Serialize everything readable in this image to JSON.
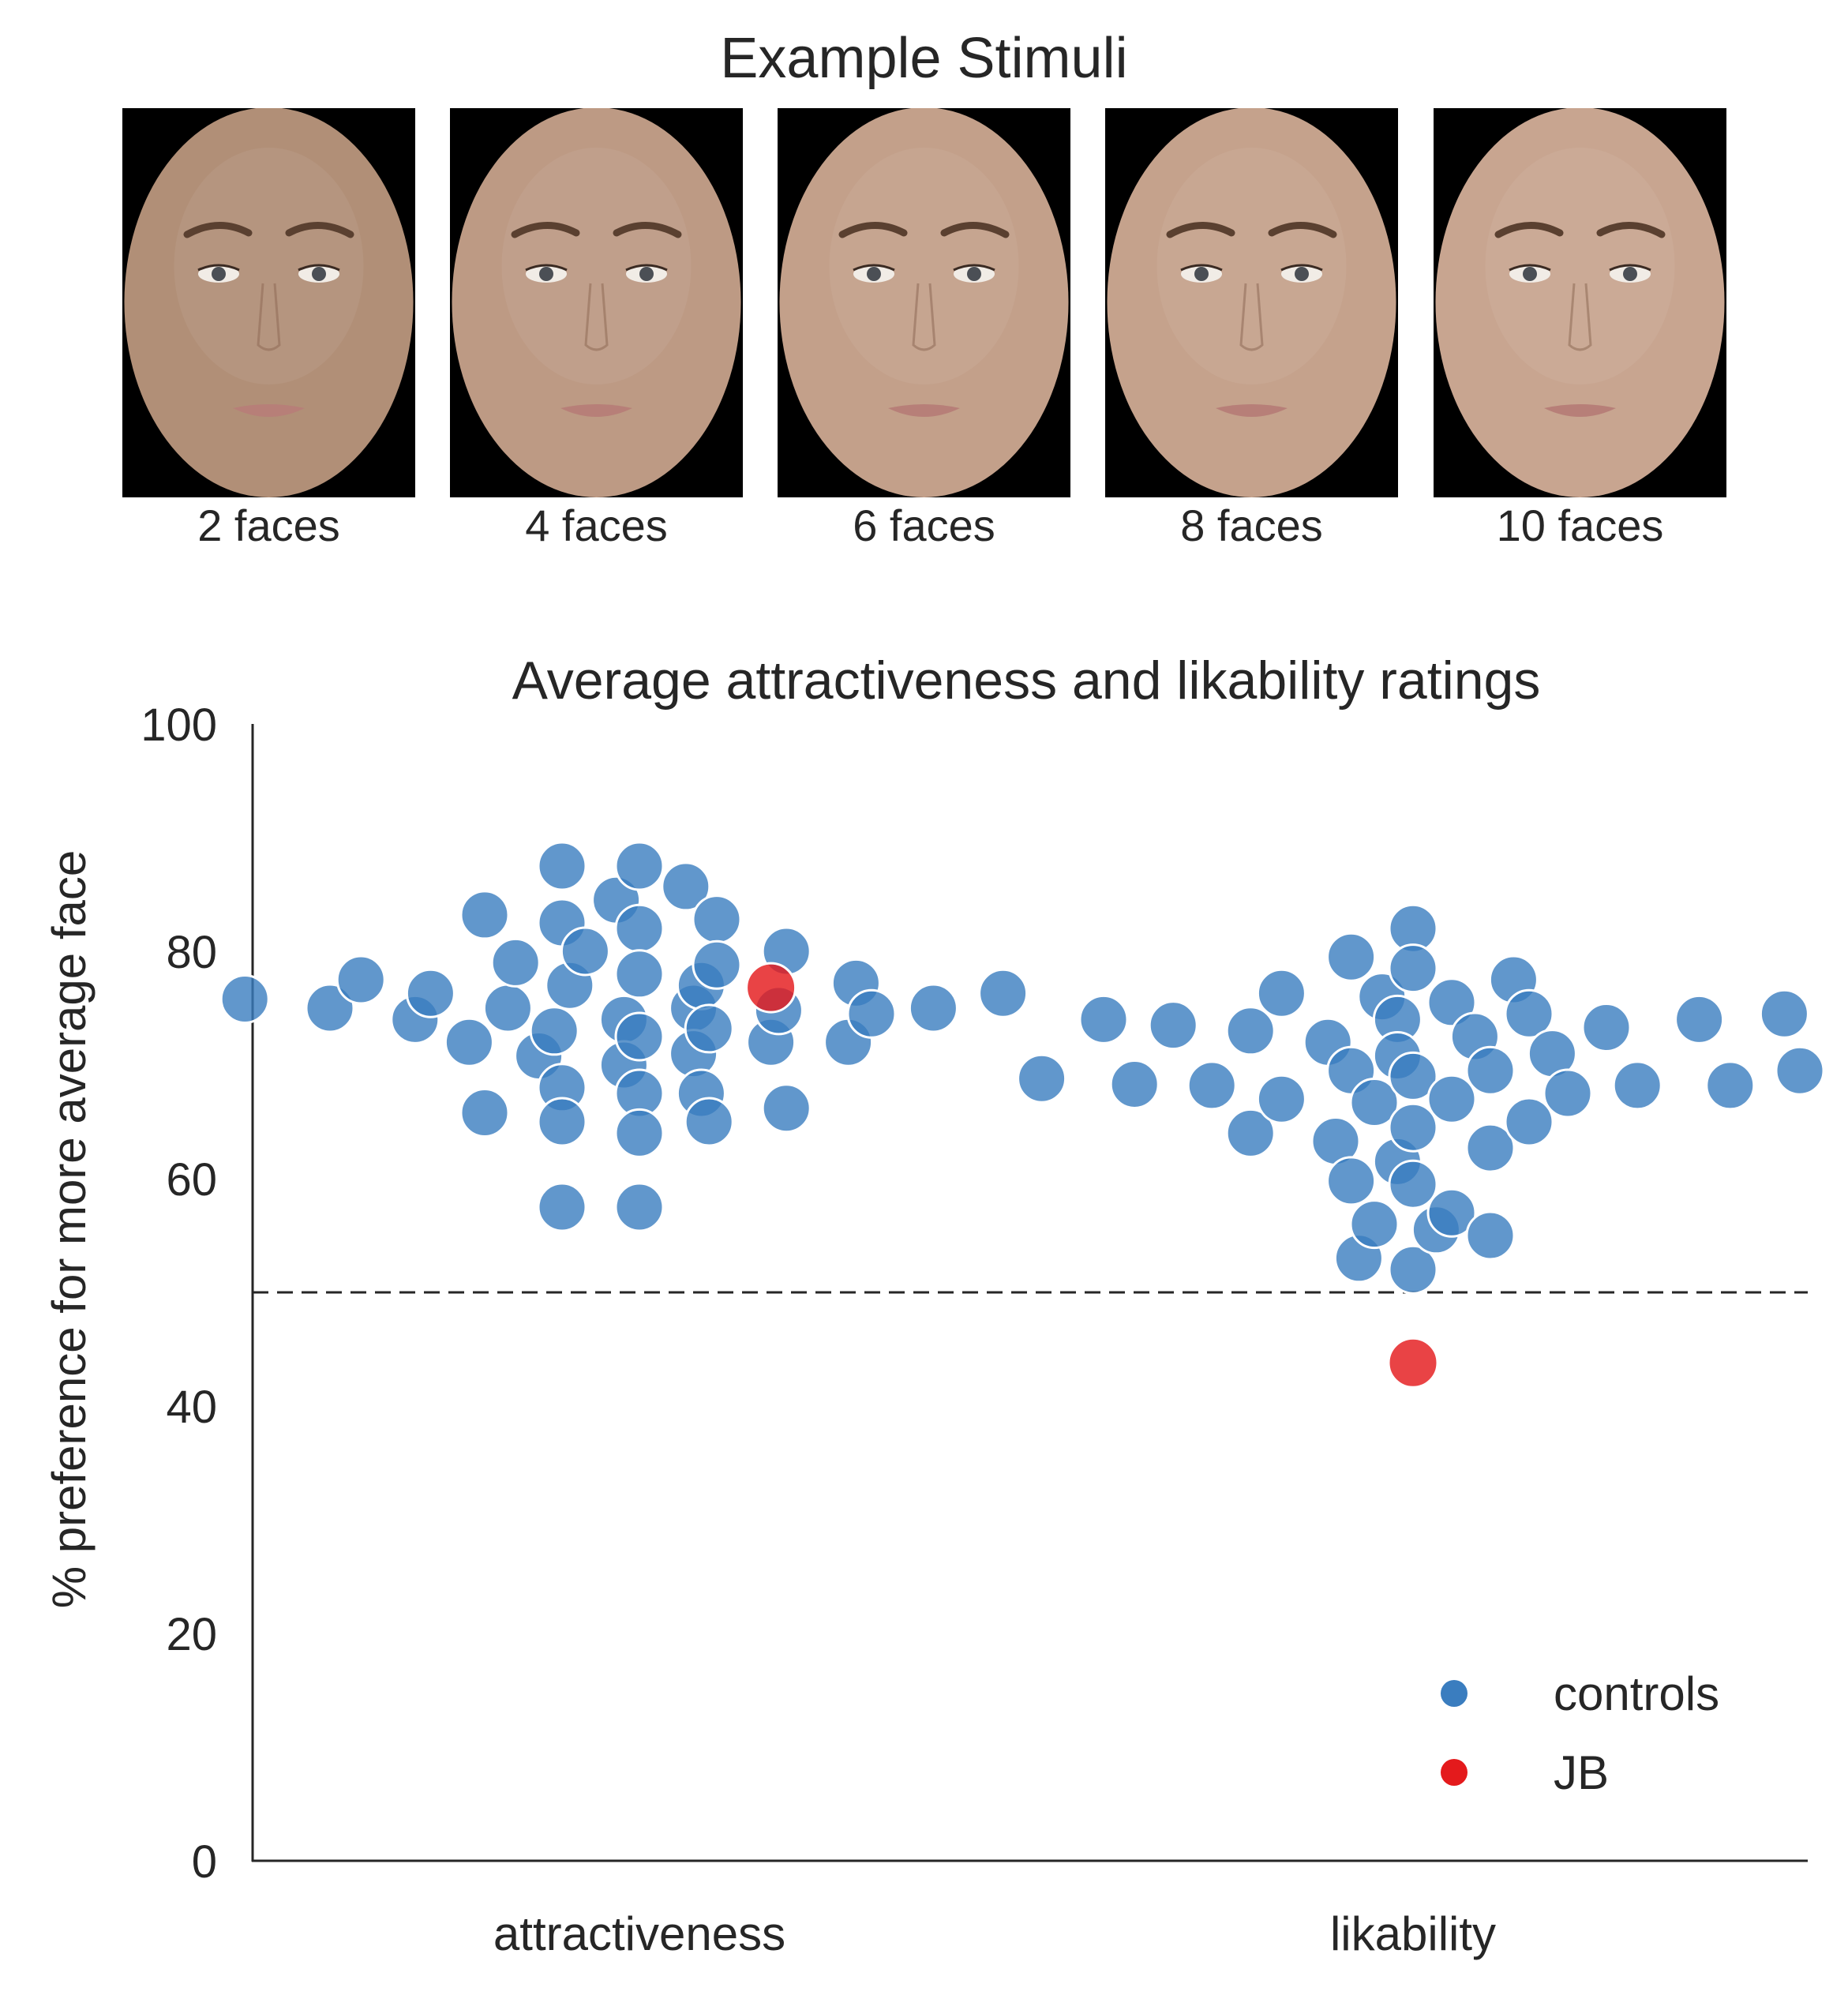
{
  "stimuli": {
    "title": "Example Stimuli",
    "faces": [
      {
        "caption": "2 faces",
        "skin": "#b18f77"
      },
      {
        "caption": "4 faces",
        "skin": "#bd9a84"
      },
      {
        "caption": "6 faces",
        "skin": "#c3a08a"
      },
      {
        "caption": "8 faces",
        "skin": "#c5a28c"
      },
      {
        "caption": "10 faces",
        "skin": "#c8a590"
      }
    ]
  },
  "chart_data": {
    "type": "scatter",
    "title": "Average attractiveness and likability ratings",
    "ylabel": "% preference for more average face",
    "xlabel": "",
    "categories": [
      "attractiveness",
      "likability"
    ],
    "ylim": [
      0,
      100
    ],
    "yticks": [
      0,
      20,
      40,
      60,
      80,
      100
    ],
    "reference_line": 50,
    "legend": {
      "placement": "lower-right"
    },
    "grid": false,
    "series": [
      {
        "name": "controls",
        "color": "#3a7dbf",
        "points": [
          {
            "category": "attractiveness",
            "dx": -0.51,
            "y": 75.8
          },
          {
            "category": "attractiveness",
            "dx": -0.4,
            "y": 75.0
          },
          {
            "category": "attractiveness",
            "dx": -0.36,
            "y": 77.5
          },
          {
            "category": "attractiveness",
            "dx": -0.29,
            "y": 74.0
          },
          {
            "category": "attractiveness",
            "dx": -0.27,
            "y": 76.3
          },
          {
            "category": "attractiveness",
            "dx": -0.22,
            "y": 72.0
          },
          {
            "category": "attractiveness",
            "dx": -0.2,
            "y": 83.2
          },
          {
            "category": "attractiveness",
            "dx": -0.2,
            "y": 65.8
          },
          {
            "category": "attractiveness",
            "dx": -0.17,
            "y": 75.0
          },
          {
            "category": "attractiveness",
            "dx": -0.16,
            "y": 79.0
          },
          {
            "category": "attractiveness",
            "dx": -0.13,
            "y": 70.8
          },
          {
            "category": "attractiveness",
            "dx": -0.11,
            "y": 73.0
          },
          {
            "category": "attractiveness",
            "dx": -0.1,
            "y": 87.5
          },
          {
            "category": "attractiveness",
            "dx": -0.1,
            "y": 82.5
          },
          {
            "category": "attractiveness",
            "dx": -0.1,
            "y": 68.0
          },
          {
            "category": "attractiveness",
            "dx": -0.1,
            "y": 65.0
          },
          {
            "category": "attractiveness",
            "dx": -0.1,
            "y": 57.5
          },
          {
            "category": "attractiveness",
            "dx": -0.09,
            "y": 77.0
          },
          {
            "category": "attractiveness",
            "dx": -0.07,
            "y": 80.0
          },
          {
            "category": "attractiveness",
            "dx": -0.03,
            "y": 84.5
          },
          {
            "category": "attractiveness",
            "dx": -0.02,
            "y": 74.0
          },
          {
            "category": "attractiveness",
            "dx": -0.02,
            "y": 70.0
          },
          {
            "category": "attractiveness",
            "dx": 0.0,
            "y": 87.5
          },
          {
            "category": "attractiveness",
            "dx": 0.0,
            "y": 82.0
          },
          {
            "category": "attractiveness",
            "dx": 0.0,
            "y": 78.0
          },
          {
            "category": "attractiveness",
            "dx": 0.0,
            "y": 72.5
          },
          {
            "category": "attractiveness",
            "dx": 0.0,
            "y": 67.5
          },
          {
            "category": "attractiveness",
            "dx": 0.0,
            "y": 64.0
          },
          {
            "category": "attractiveness",
            "dx": 0.0,
            "y": 57.5
          },
          {
            "category": "attractiveness",
            "dx": 0.06,
            "y": 85.7
          },
          {
            "category": "attractiveness",
            "dx": 0.07,
            "y": 75.0
          },
          {
            "category": "attractiveness",
            "dx": 0.07,
            "y": 71.0
          },
          {
            "category": "attractiveness",
            "dx": 0.08,
            "y": 77.0
          },
          {
            "category": "attractiveness",
            "dx": 0.08,
            "y": 67.5
          },
          {
            "category": "attractiveness",
            "dx": 0.09,
            "y": 73.2
          },
          {
            "category": "attractiveness",
            "dx": 0.09,
            "y": 65.0
          },
          {
            "category": "attractiveness",
            "dx": 0.1,
            "y": 82.8
          },
          {
            "category": "attractiveness",
            "dx": 0.1,
            "y": 78.8
          },
          {
            "category": "attractiveness",
            "dx": 0.17,
            "y": 72.0
          },
          {
            "category": "attractiveness",
            "dx": 0.18,
            "y": 74.8
          },
          {
            "category": "attractiveness",
            "dx": 0.19,
            "y": 80.0
          },
          {
            "category": "attractiveness",
            "dx": 0.19,
            "y": 66.2
          },
          {
            "category": "attractiveness",
            "dx": 0.27,
            "y": 72.0
          },
          {
            "category": "attractiveness",
            "dx": 0.28,
            "y": 77.2
          },
          {
            "category": "attractiveness",
            "dx": 0.3,
            "y": 74.5
          },
          {
            "category": "attractiveness",
            "dx": 0.38,
            "y": 75.0
          },
          {
            "category": "attractiveness",
            "dx": 0.47,
            "y": 76.3
          },
          {
            "category": "likability",
            "dx": -0.48,
            "y": 68.8
          },
          {
            "category": "likability",
            "dx": -0.4,
            "y": 74.0
          },
          {
            "category": "likability",
            "dx": -0.36,
            "y": 68.3
          },
          {
            "category": "likability",
            "dx": -0.31,
            "y": 73.5
          },
          {
            "category": "likability",
            "dx": -0.26,
            "y": 68.2
          },
          {
            "category": "likability",
            "dx": -0.21,
            "y": 73.0
          },
          {
            "category": "likability",
            "dx": -0.21,
            "y": 64.0
          },
          {
            "category": "likability",
            "dx": -0.17,
            "y": 67.0
          },
          {
            "category": "likability",
            "dx": -0.17,
            "y": 76.3
          },
          {
            "category": "likability",
            "dx": -0.11,
            "y": 72.0
          },
          {
            "category": "likability",
            "dx": -0.1,
            "y": 63.3
          },
          {
            "category": "likability",
            "dx": -0.08,
            "y": 59.8
          },
          {
            "category": "likability",
            "dx": -0.08,
            "y": 69.5
          },
          {
            "category": "likability",
            "dx": -0.08,
            "y": 79.5
          },
          {
            "category": "likability",
            "dx": -0.07,
            "y": 53.0
          },
          {
            "category": "likability",
            "dx": -0.05,
            "y": 56.0
          },
          {
            "category": "likability",
            "dx": -0.05,
            "y": 66.7
          },
          {
            "category": "likability",
            "dx": -0.04,
            "y": 76.0
          },
          {
            "category": "likability",
            "dx": -0.02,
            "y": 74.0
          },
          {
            "category": "likability",
            "dx": -0.02,
            "y": 61.5
          },
          {
            "category": "likability",
            "dx": -0.02,
            "y": 70.8
          },
          {
            "category": "likability",
            "dx": 0.0,
            "y": 82.0
          },
          {
            "category": "likability",
            "dx": 0.0,
            "y": 78.5
          },
          {
            "category": "likability",
            "dx": 0.0,
            "y": 69.0
          },
          {
            "category": "likability",
            "dx": 0.0,
            "y": 64.5
          },
          {
            "category": "likability",
            "dx": 0.0,
            "y": 59.5
          },
          {
            "category": "likability",
            "dx": 0.0,
            "y": 52.0
          },
          {
            "category": "likability",
            "dx": 0.03,
            "y": 55.5
          },
          {
            "category": "likability",
            "dx": 0.05,
            "y": 75.5
          },
          {
            "category": "likability",
            "dx": 0.05,
            "y": 67.0
          },
          {
            "category": "likability",
            "dx": 0.05,
            "y": 57.0
          },
          {
            "category": "likability",
            "dx": 0.08,
            "y": 72.5
          },
          {
            "category": "likability",
            "dx": 0.1,
            "y": 69.5
          },
          {
            "category": "likability",
            "dx": 0.1,
            "y": 62.7
          },
          {
            "category": "likability",
            "dx": 0.1,
            "y": 55.0
          },
          {
            "category": "likability",
            "dx": 0.13,
            "y": 77.5
          },
          {
            "category": "likability",
            "dx": 0.15,
            "y": 74.5
          },
          {
            "category": "likability",
            "dx": 0.15,
            "y": 65.0
          },
          {
            "category": "likability",
            "dx": 0.18,
            "y": 71.0
          },
          {
            "category": "likability",
            "dx": 0.2,
            "y": 67.5
          },
          {
            "category": "likability",
            "dx": 0.25,
            "y": 73.3
          },
          {
            "category": "likability",
            "dx": 0.29,
            "y": 68.2
          },
          {
            "category": "likability",
            "dx": 0.37,
            "y": 74.0
          },
          {
            "category": "likability",
            "dx": 0.41,
            "y": 68.2
          },
          {
            "category": "likability",
            "dx": 0.48,
            "y": 74.5
          },
          {
            "category": "likability",
            "dx": 0.5,
            "y": 69.5
          }
        ]
      },
      {
        "name": "JB",
        "color": "#e41a1c",
        "points": [
          {
            "category": "attractiveness",
            "dx": 0.17,
            "y": 76.8
          },
          {
            "category": "likability",
            "dx": 0.0,
            "y": 43.8
          }
        ]
      }
    ]
  }
}
